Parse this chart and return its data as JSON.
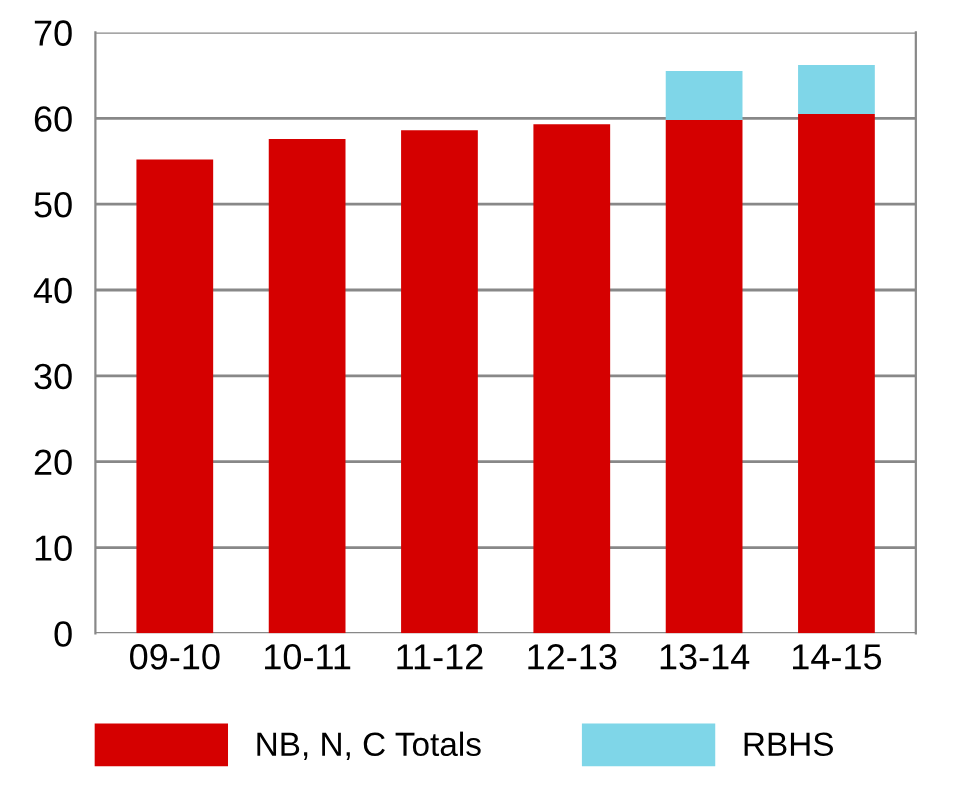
{
  "chart_data": {
    "type": "bar",
    "stacked": true,
    "categories": [
      "09-10",
      "10-11",
      "11-12",
      "12-13",
      "13-14",
      "14-15"
    ],
    "series": [
      {
        "name": "NB, N, C Totals",
        "color": "#d50000",
        "values": [
          55.2,
          57.6,
          58.6,
          59.3,
          59.8,
          60.5
        ]
      },
      {
        "name": "RBHS",
        "color": "#7fd6e8",
        "values": [
          null,
          null,
          null,
          null,
          5.7,
          5.7
        ]
      }
    ],
    "ylim": [
      0,
      70
    ],
    "yticks": [
      0,
      10,
      20,
      30,
      40,
      50,
      60,
      70
    ],
    "grid": "y",
    "legend": "bottom"
  }
}
